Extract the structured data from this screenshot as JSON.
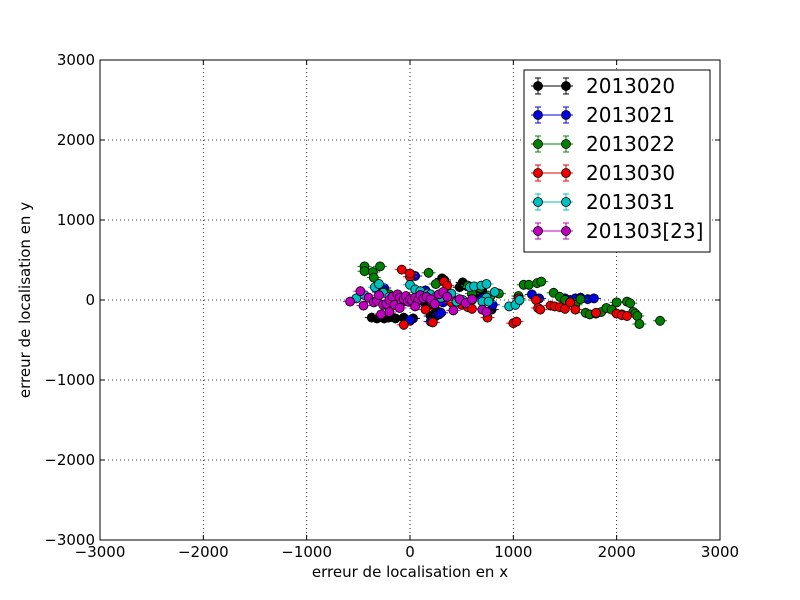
{
  "chart_data": {
    "type": "scatter",
    "xlabel": "erreur de localisation en x",
    "ylabel": "erreur de localisation en y",
    "xlim": [
      -3000,
      3000
    ],
    "ylim": [
      -3000,
      3000
    ],
    "x_ticks": [
      -3000,
      -2000,
      -1000,
      0,
      1000,
      2000,
      3000
    ],
    "y_ticks": [
      -3000,
      -2000,
      -1000,
      0,
      1000,
      2000,
      3000
    ],
    "x_tick_labels": [
      "−3000",
      "−2000",
      "−1000",
      "0",
      "1000",
      "2000",
      "3000"
    ],
    "y_tick_labels": [
      "−3000",
      "−2000",
      "−1000",
      "0",
      "1000",
      "2000",
      "3000"
    ],
    "grid": true,
    "legend_position": "top-right",
    "error_bars": true,
    "series": [
      {
        "name": "2013020",
        "color": "#000000",
        "points": [
          [
            -370,
            -220
          ],
          [
            -320,
            -230
          ],
          [
            -280,
            -200
          ],
          [
            -250,
            -230
          ],
          [
            -210,
            -220
          ],
          [
            -180,
            -210
          ],
          [
            -140,
            -230
          ],
          [
            -60,
            -220
          ],
          [
            0,
            -260
          ],
          [
            30,
            -230
          ],
          [
            200,
            -200
          ],
          [
            250,
            -200
          ],
          [
            310,
            270
          ],
          [
            330,
            250
          ],
          [
            480,
            160
          ],
          [
            510,
            220
          ],
          [
            540,
            180
          ],
          [
            600,
            120
          ],
          [
            620,
            60
          ],
          [
            700,
            110
          ],
          [
            790,
            -120
          ],
          [
            240,
            -100
          ],
          [
            380,
            80
          ],
          [
            150,
            -60
          ]
        ]
      },
      {
        "name": "2013021",
        "color": "#0000dd",
        "points": [
          [
            -300,
            100
          ],
          [
            -250,
            150
          ],
          [
            -200,
            60
          ],
          [
            -120,
            60
          ],
          [
            -50,
            30
          ],
          [
            0,
            -250
          ],
          [
            50,
            300
          ],
          [
            80,
            100
          ],
          [
            150,
            120
          ],
          [
            200,
            -270
          ],
          [
            280,
            -180
          ],
          [
            300,
            -160
          ],
          [
            320,
            -30
          ],
          [
            400,
            20
          ],
          [
            500,
            -30
          ],
          [
            600,
            0
          ],
          [
            700,
            20
          ],
          [
            800,
            -60
          ],
          [
            1180,
            70
          ],
          [
            1250,
            20
          ],
          [
            1500,
            20
          ],
          [
            1550,
            0
          ],
          [
            1600,
            20
          ],
          [
            1650,
            30
          ],
          [
            1720,
            10
          ],
          [
            1780,
            20
          ]
        ]
      },
      {
        "name": "2013022",
        "color": "#008000",
        "points": [
          [
            -440,
            420
          ],
          [
            -440,
            360
          ],
          [
            -360,
            350
          ],
          [
            -350,
            280
          ],
          [
            -290,
            420
          ],
          [
            -250,
            100
          ],
          [
            -200,
            70
          ],
          [
            180,
            340
          ],
          [
            250,
            200
          ],
          [
            560,
            180
          ],
          [
            600,
            80
          ],
          [
            680,
            150
          ],
          [
            780,
            50
          ],
          [
            860,
            80
          ],
          [
            1050,
            50
          ],
          [
            1100,
            190
          ],
          [
            1150,
            190
          ],
          [
            1230,
            210
          ],
          [
            1270,
            230
          ],
          [
            1390,
            90
          ],
          [
            1450,
            40
          ],
          [
            1500,
            0
          ],
          [
            1550,
            -30
          ],
          [
            1600,
            -60
          ],
          [
            1650,
            10
          ],
          [
            1700,
            -160
          ],
          [
            1740,
            -180
          ],
          [
            1800,
            -170
          ],
          [
            1850,
            -150
          ],
          [
            1900,
            -100
          ],
          [
            1950,
            -120
          ],
          [
            2000,
            -30
          ],
          [
            2050,
            -180
          ],
          [
            2100,
            -20
          ],
          [
            2130,
            -40
          ],
          [
            2160,
            -150
          ],
          [
            2180,
            -170
          ],
          [
            2200,
            -200
          ],
          [
            2220,
            -300
          ],
          [
            2420,
            -260
          ]
        ]
      },
      {
        "name": "2013030",
        "color": "#ee0000",
        "points": [
          [
            -60,
            -310
          ],
          [
            -80,
            380
          ],
          [
            0,
            290
          ],
          [
            0,
            330
          ],
          [
            150,
            -120
          ],
          [
            220,
            -280
          ],
          [
            330,
            230
          ],
          [
            360,
            180
          ],
          [
            400,
            -30
          ],
          [
            500,
            -60
          ],
          [
            560,
            -90
          ],
          [
            600,
            -110
          ],
          [
            750,
            -220
          ],
          [
            1000,
            -290
          ],
          [
            1030,
            -270
          ],
          [
            1050,
            20
          ],
          [
            1220,
            0
          ],
          [
            1240,
            -100
          ],
          [
            1260,
            -120
          ],
          [
            1360,
            -70
          ],
          [
            1400,
            -80
          ],
          [
            1450,
            -90
          ],
          [
            1500,
            -110
          ],
          [
            1550,
            -30
          ],
          [
            1600,
            -120
          ],
          [
            1800,
            -160
          ],
          [
            2000,
            -170
          ],
          [
            2050,
            -190
          ],
          [
            2100,
            -200
          ]
        ]
      },
      {
        "name": "2013031",
        "color": "#00bfbf",
        "points": [
          [
            -520,
            20
          ],
          [
            -440,
            60
          ],
          [
            -340,
            160
          ],
          [
            -300,
            200
          ],
          [
            -260,
            90
          ],
          [
            -200,
            40
          ],
          [
            -150,
            10
          ],
          [
            0,
            190
          ],
          [
            50,
            130
          ],
          [
            100,
            110
          ],
          [
            170,
            80
          ],
          [
            200,
            70
          ],
          [
            250,
            40
          ],
          [
            300,
            30
          ],
          [
            400,
            80
          ],
          [
            450,
            -20
          ],
          [
            510,
            0
          ],
          [
            580,
            160
          ],
          [
            620,
            170
          ],
          [
            690,
            180
          ],
          [
            740,
            200
          ],
          [
            740,
            30
          ],
          [
            700,
            -20
          ],
          [
            760,
            -20
          ],
          [
            820,
            100
          ],
          [
            960,
            -80
          ],
          [
            1020,
            -60
          ],
          [
            1060,
            0
          ]
        ]
      },
      {
        "name": "201303[23]",
        "color": "#bf00bf",
        "points": [
          [
            -580,
            -20
          ],
          [
            -480,
            110
          ],
          [
            -450,
            -70
          ],
          [
            -400,
            30
          ],
          [
            -350,
            -30
          ],
          [
            -320,
            -10
          ],
          [
            -300,
            60
          ],
          [
            -260,
            -60
          ],
          [
            -230,
            -50
          ],
          [
            -200,
            0
          ],
          [
            -170,
            40
          ],
          [
            -150,
            -60
          ],
          [
            -120,
            70
          ],
          [
            -100,
            30
          ],
          [
            -80,
            -30
          ],
          [
            -60,
            10
          ],
          [
            -40,
            50
          ],
          [
            -20,
            -20
          ],
          [
            0,
            10
          ],
          [
            20,
            -10
          ],
          [
            50,
            30
          ],
          [
            80,
            0
          ],
          [
            100,
            60
          ],
          [
            130,
            20
          ],
          [
            160,
            40
          ],
          [
            200,
            10
          ],
          [
            240,
            -50
          ],
          [
            280,
            70
          ],
          [
            320,
            100
          ],
          [
            360,
            40
          ],
          [
            420,
            -130
          ],
          [
            480,
            10
          ],
          [
            540,
            -40
          ],
          [
            600,
            10
          ],
          [
            700,
            -120
          ],
          [
            740,
            -150
          ],
          [
            -280,
            -180
          ],
          [
            -200,
            -150
          ],
          [
            -100,
            -100
          ],
          [
            50,
            -80
          ]
        ]
      }
    ]
  }
}
